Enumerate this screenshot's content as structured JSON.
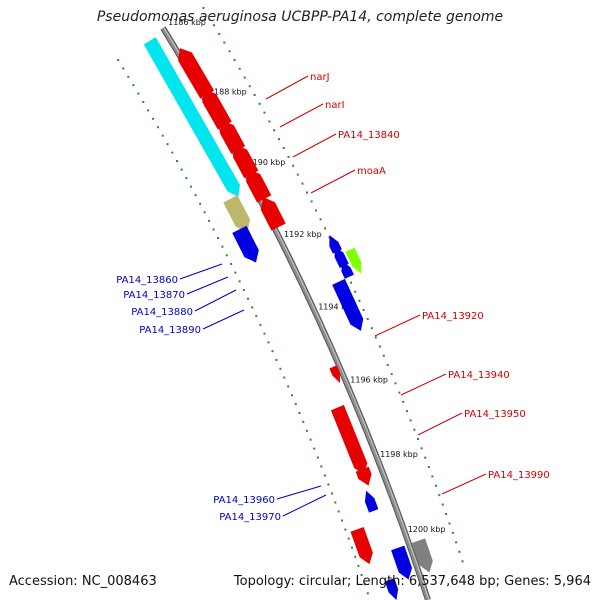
{
  "title": "Pseudomonas aeruginosa UCBPP-PA14, complete genome",
  "footer": {
    "accession": "Accession: NC_008463",
    "summary": "Topology: circular; Length: 6,537,648 bp; Genes: 5,964"
  },
  "colors": {
    "backbone": "#8c8c8c",
    "ticks": "#2a8a2a",
    "forward_label": "#d40000",
    "reverse_label": "#0000c8"
  },
  "ticks": [
    {
      "label": "1186 kbp",
      "kbp": 1186
    },
    {
      "label": "1188 kbp",
      "kbp": 1188
    },
    {
      "label": "1190 kbp",
      "kbp": 1190
    },
    {
      "label": "1192 kbp",
      "kbp": 1192
    },
    {
      "label": "1194 kbp",
      "kbp": 1194
    },
    {
      "label": "1196 kbp",
      "kbp": 1196
    },
    {
      "label": "1198 kbp",
      "kbp": 1198
    },
    {
      "label": "1200 kbp",
      "kbp": 1200
    }
  ],
  "features": [
    {
      "track": "cyan",
      "kbp_start": 1185.6,
      "kbp_end": 1189.9,
      "strand": "+",
      "color": "#00e5ee"
    },
    {
      "track": "red-in",
      "kbp_start": 1186.4,
      "kbp_end": 1187.5,
      "strand": "-",
      "color": "#e60000"
    },
    {
      "track": "red-in",
      "kbp_start": 1187.6,
      "kbp_end": 1188.4,
      "strand": "-",
      "color": "#e60000"
    },
    {
      "track": "red-in",
      "kbp_start": 1188.5,
      "kbp_end": 1189.1,
      "strand": "-",
      "color": "#e60000"
    },
    {
      "track": "red-in",
      "kbp_start": 1189.2,
      "kbp_end": 1189.8,
      "strand": "-",
      "color": "#e60000"
    },
    {
      "track": "red-in",
      "kbp_start": 1189.9,
      "kbp_end": 1190.5,
      "strand": "-",
      "color": "#e60000"
    },
    {
      "track": "red-in",
      "kbp_start": 1190.7,
      "kbp_end": 1191.3,
      "strand": "-",
      "color": "#e60000"
    },
    {
      "track": "olive",
      "kbp_start": 1190.1,
      "kbp_end": 1190.8,
      "strand": "+",
      "color": "#bdb76b"
    },
    {
      "track": "blue-out",
      "kbp_start": 1190.9,
      "kbp_end": 1191.6,
      "strand": "+",
      "color": "#0000e0"
    },
    {
      "track": "blue-far",
      "kbp_start": 1192.3,
      "kbp_end": 1192.5,
      "strand": "-",
      "color": "#0000e0"
    },
    {
      "track": "blue-far",
      "kbp_start": 1192.6,
      "kbp_end": 1192.9,
      "strand": "-",
      "color": "#0000e0"
    },
    {
      "track": "blue-far",
      "kbp_start": 1193.0,
      "kbp_end": 1193.2,
      "strand": "-",
      "color": "#0000e0"
    },
    {
      "track": "green",
      "kbp_start": 1192.6,
      "kbp_end": 1193.0,
      "strand": "+",
      "color": "#7fff00"
    },
    {
      "track": "blue-mid",
      "kbp_start": 1193.2,
      "kbp_end": 1194.3,
      "strand": "+",
      "color": "#0000e0"
    },
    {
      "track": "red-tri",
      "kbp_start": 1195.1,
      "kbp_end": 1195.3,
      "strand": "+",
      "color": "#e60000"
    },
    {
      "track": "red-mid",
      "kbp_start": 1196.1,
      "kbp_end": 1197.7,
      "strand": "+",
      "color": "#e60000"
    },
    {
      "track": "red-mid",
      "kbp_start": 1197.8,
      "kbp_end": 1198.0,
      "strand": "+",
      "color": "#e60000"
    },
    {
      "track": "blue-low",
      "kbp_start": 1198.6,
      "kbp_end": 1198.9,
      "strand": "-",
      "color": "#0000e0"
    },
    {
      "track": "red-low",
      "kbp_start": 1199.2,
      "kbp_end": 1199.9,
      "strand": "+",
      "color": "#e60000"
    },
    {
      "track": "grey",
      "kbp_start": 1200.0,
      "kbp_end": 1200.6,
      "strand": "+",
      "color": "#808080"
    },
    {
      "track": "blue-bot",
      "kbp_start": 1200.0,
      "kbp_end": 1200.6,
      "strand": "+",
      "color": "#0000e0"
    },
    {
      "track": "blue-bot2",
      "kbp_start": 1200.7,
      "kbp_end": 1201.0,
      "strand": "+",
      "color": "#0000e0"
    }
  ],
  "labels": {
    "forward": [
      "narJ",
      "narI",
      "PA14_13840",
      "moaA",
      "PA14_13920",
      "PA14_13940",
      "PA14_13950",
      "PA14_13990"
    ],
    "reverse": [
      "PA14_13860",
      "PA14_13870",
      "PA14_13880",
      "PA14_13890",
      "PA14_13960",
      "PA14_13970"
    ]
  }
}
